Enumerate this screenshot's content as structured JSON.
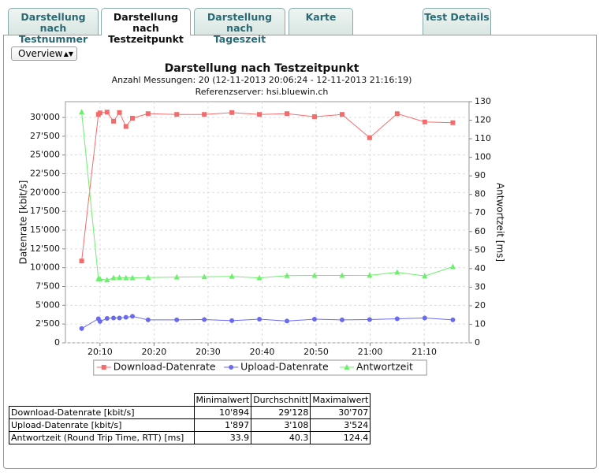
{
  "tabs": [
    {
      "lines": [
        "Darstellung nach",
        "Testnummer"
      ]
    },
    {
      "lines": [
        "Darstellung nach",
        "Testzeitpunkt"
      ]
    },
    {
      "lines": [
        "Darstellung nach",
        "Tageszeit"
      ]
    },
    {
      "lines": [
        "Karte"
      ]
    },
    {
      "lines": [
        "Test Details"
      ]
    }
  ],
  "controls": {
    "select": "Overview"
  },
  "chart_data": {
    "type": "line",
    "title": "Darstellung nach Testzeitpunkt",
    "subtitle": "Anzahl Messungen: 20 (12-11-2013 20:06:24 - 12-11-2013 21:16:19)",
    "subtitle2": "Referenzserver: hsi.bluewin.ch",
    "ylabel": "Datenrate [kbit/s]",
    "y2label": "Antwortzeit [ms]",
    "grid": true,
    "x": [
      1206.6,
      1209.7,
      1210.0,
      1211.3,
      1212.5,
      1213.6,
      1214.8,
      1216.0,
      1218.9,
      1224.2,
      1229.3,
      1234.4,
      1239.5,
      1244.6,
      1249.7,
      1254.8,
      1259.9,
      1265.0,
      1270.1,
      1275.3
    ],
    "xlim": [
      1203.6,
      1278.3
    ],
    "xticks": [
      {
        "value": 1210,
        "label": "20:10"
      },
      {
        "value": 1220,
        "label": "20:20"
      },
      {
        "value": 1230,
        "label": "20:30"
      },
      {
        "value": 1240,
        "label": "20:40"
      },
      {
        "value": 1250,
        "label": "20:50"
      },
      {
        "value": 1260,
        "label": "21:00"
      },
      {
        "value": 1270,
        "label": "21:10"
      }
    ],
    "ylim": [
      0,
      32100
    ],
    "yticks": [
      0,
      {
        "value": 2500,
        "label": "2'500"
      },
      {
        "value": 5000,
        "label": "5'000"
      },
      {
        "value": 7500,
        "label": "7'500"
      },
      {
        "value": 10000,
        "label": "10'000"
      },
      {
        "value": 12500,
        "label": "12'500"
      },
      {
        "value": 15000,
        "label": "15'000"
      },
      {
        "value": 17500,
        "label": "17'500"
      },
      {
        "value": 20000,
        "label": "20'000"
      },
      {
        "value": 22500,
        "label": "22'500"
      },
      {
        "value": 25000,
        "label": "25'000"
      },
      {
        "value": 27500,
        "label": "27'500"
      },
      {
        "value": 30000,
        "label": "30'000"
      }
    ],
    "y2lim": [
      0,
      130
    ],
    "y2ticks": [
      0,
      10,
      20,
      30,
      40,
      50,
      60,
      70,
      80,
      90,
      100,
      110,
      120,
      130
    ],
    "series": [
      {
        "name": "Download-Datenrate",
        "color": "#f46b6b",
        "marker": "square",
        "values": [
          10894,
          30400,
          30600,
          30707,
          29500,
          30650,
          28800,
          29900,
          30500,
          30400,
          30400,
          30650,
          30400,
          30500,
          30100,
          30400,
          27300,
          30500,
          29400,
          29300
        ]
      },
      {
        "name": "Upload-Datenrate",
        "color": "#6a6af0",
        "marker": "circle",
        "values": [
          1897,
          3200,
          2850,
          3250,
          3300,
          3300,
          3400,
          3524,
          3050,
          3050,
          3100,
          2950,
          3150,
          2900,
          3150,
          3050,
          3100,
          3200,
          3300,
          3050
        ]
      },
      {
        "name": "Antwortzeit",
        "color": "#6cf06c",
        "marker": "triangle",
        "axis": "y2",
        "values": [
          124.4,
          34.5,
          34.4,
          33.9,
          35.0,
          35.2,
          35.0,
          35.0,
          35.2,
          35.4,
          35.6,
          35.8,
          35.0,
          36.2,
          36.3,
          36.3,
          36.4,
          38.0,
          36.0,
          41.0
        ]
      }
    ]
  },
  "table": {
    "header": [
      "Minimalwert",
      "Durchschnitt",
      "Maximalwert"
    ],
    "rows": [
      [
        "Download-Datenrate [kbit/s]",
        "10'894",
        "29'128",
        "30'707"
      ],
      [
        "Upload-Datenrate [kbit/s]",
        "1'897",
        "3'108",
        "3'524"
      ],
      [
        "Antwortzeit (Round Trip Time, RTT) [ms]",
        "33.9",
        "40.3",
        "124.4"
      ]
    ]
  }
}
